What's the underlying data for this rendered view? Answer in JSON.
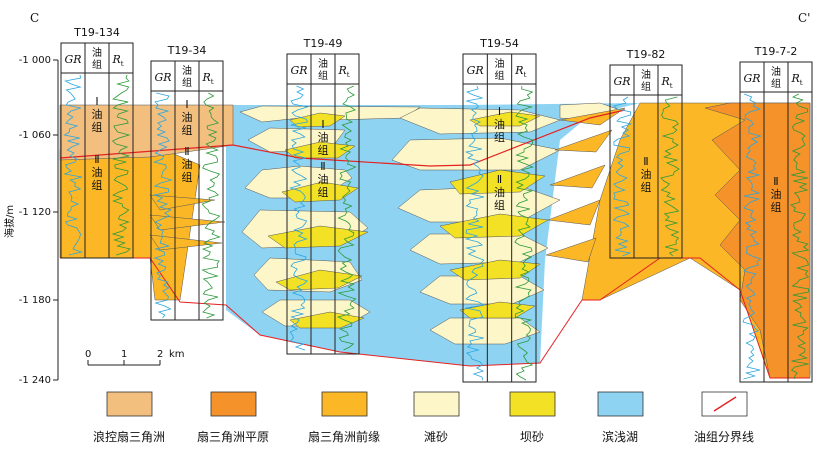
{
  "section": {
    "left_label": "C",
    "right_label": "C'"
  },
  "y_axis": {
    "label": "海拔/m",
    "ticks": [
      "-1 000",
      "-1 060",
      "-1 120",
      "-1 180",
      "-1 240"
    ]
  },
  "wells": [
    {
      "name": "T19-134",
      "col_gr": "GR",
      "col_group": "油组",
      "col_rt": "R",
      "col_rt_sub": "t",
      "group_labels": [
        "Ⅰ油组",
        "Ⅱ油组"
      ]
    },
    {
      "name": "T19-34",
      "col_gr": "GR",
      "col_group": "油组",
      "col_rt": "R",
      "col_rt_sub": "t",
      "group_labels": [
        "Ⅰ油组",
        "Ⅱ油组"
      ]
    },
    {
      "name": "T19-49",
      "col_gr": "GR",
      "col_group": "油组",
      "col_rt": "R",
      "col_rt_sub": "t",
      "group_labels": [
        "Ⅰ油组",
        "Ⅱ油组"
      ]
    },
    {
      "name": "T19-54",
      "col_gr": "GR",
      "col_group": "油组",
      "col_rt": "R",
      "col_rt_sub": "t",
      "group_labels": [
        "Ⅰ油组",
        "Ⅱ油组"
      ]
    },
    {
      "name": "T19-82",
      "col_gr": "GR",
      "col_group": "油组",
      "col_rt": "R",
      "col_rt_sub": "t",
      "group_labels": [
        "Ⅱ油组"
      ]
    },
    {
      "name": "T19-7-2",
      "col_gr": "GR",
      "col_group": "油组",
      "col_rt": "R",
      "col_rt_sub": "t",
      "group_labels": [
        "Ⅱ油组"
      ]
    }
  ],
  "scale_bar": {
    "ticks": [
      "0",
      "1",
      "2"
    ],
    "unit": "km"
  },
  "legend": [
    {
      "label": "浪控扇三角洲",
      "color": "#f2bf7e"
    },
    {
      "label": "扇三角洲平原",
      "color": "#f5922a"
    },
    {
      "label": "扇三角洲前缘",
      "color": "#fbb726"
    },
    {
      "label": "滩砂",
      "color": "#fdf6c8"
    },
    {
      "label": "坝砂",
      "color": "#f2e124"
    },
    {
      "label": "滨浅湖",
      "color": "#8fd3f2"
    },
    {
      "label": "油组分界线",
      "color": "#e52222"
    }
  ],
  "colors": {
    "lake": "#8fd3f2",
    "beach": "#fdf6c8",
    "bar": "#f2e124",
    "front": "#fbb726",
    "plain": "#f5922a",
    "wave": "#f2bf7e",
    "boundary": "#e52222",
    "gr_log": "#2aa6e0",
    "rt_log": "#2a9a3a"
  }
}
